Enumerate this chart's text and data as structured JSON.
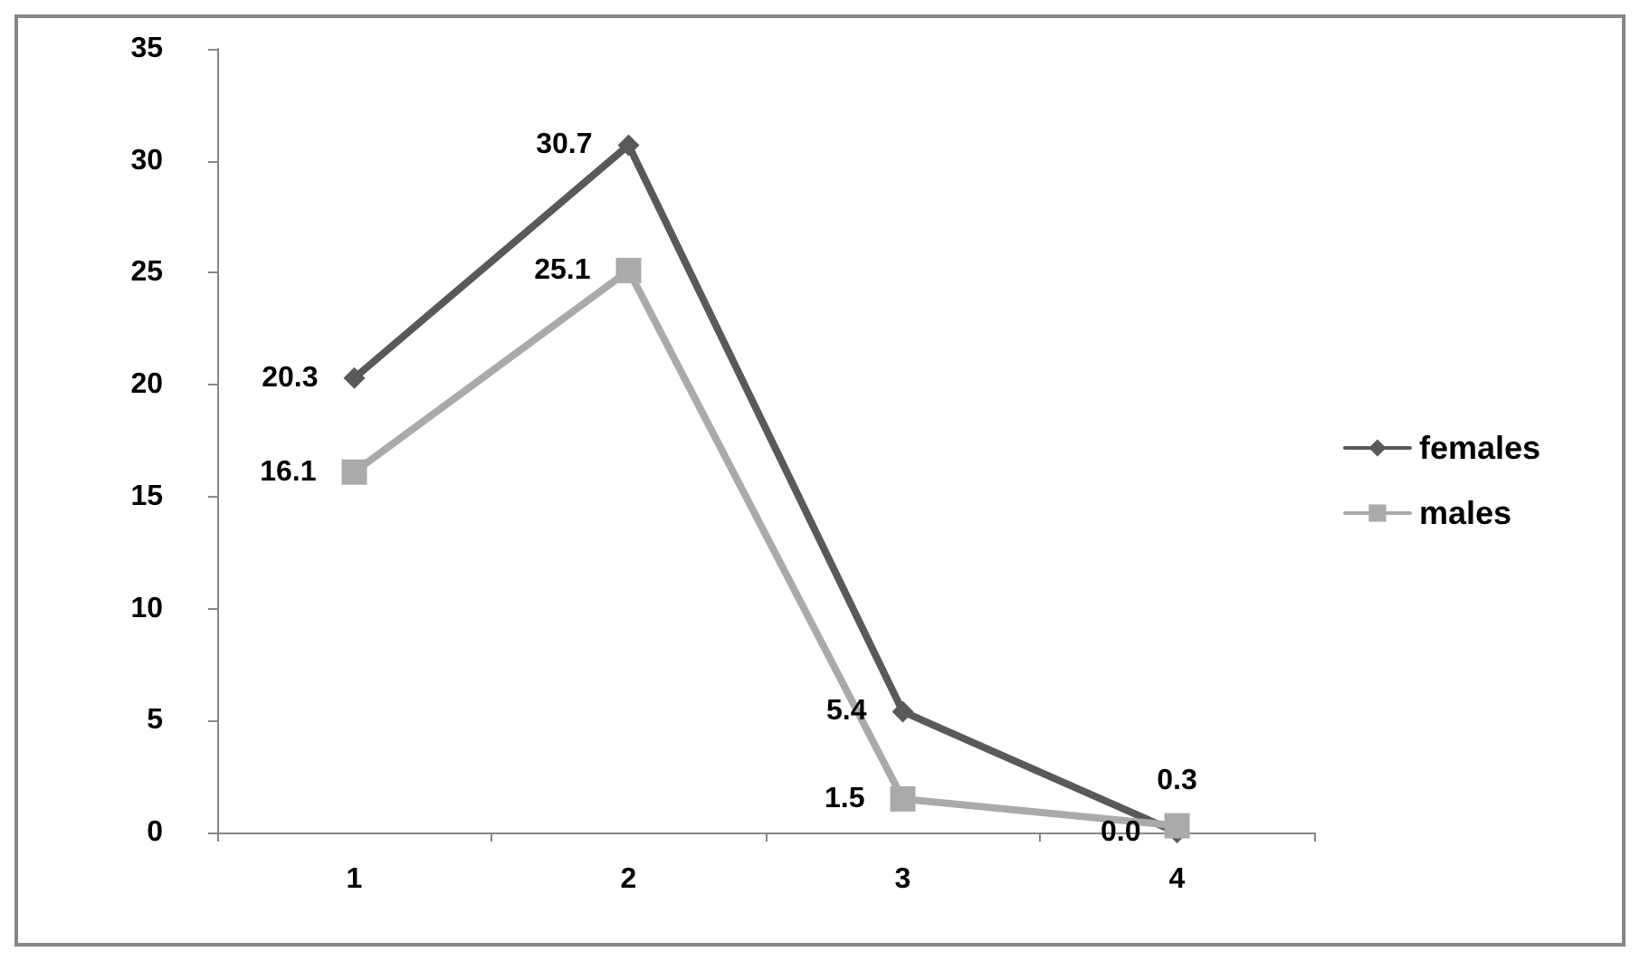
{
  "chart_data": {
    "type": "line",
    "categories": [
      "1",
      "2",
      "3",
      "4"
    ],
    "series": [
      {
        "name": "females",
        "color": "#595959",
        "marker": "diamond",
        "values": [
          20.3,
          30.7,
          5.4,
          0.0
        ],
        "value_labels": [
          "20.3",
          "30.7",
          "5.4",
          "0.0"
        ]
      },
      {
        "name": "males",
        "color": "#aaaaaa",
        "marker": "square",
        "values": [
          16.1,
          25.1,
          1.5,
          0.3
        ],
        "value_labels": [
          "16.1",
          "25.1",
          "1.5",
          "0.3"
        ]
      }
    ],
    "ylim": [
      0,
      35
    ],
    "yticks": [
      0,
      5,
      10,
      15,
      20,
      25,
      30,
      35
    ],
    "grid": false,
    "legend": "right",
    "line_style": "solid"
  }
}
